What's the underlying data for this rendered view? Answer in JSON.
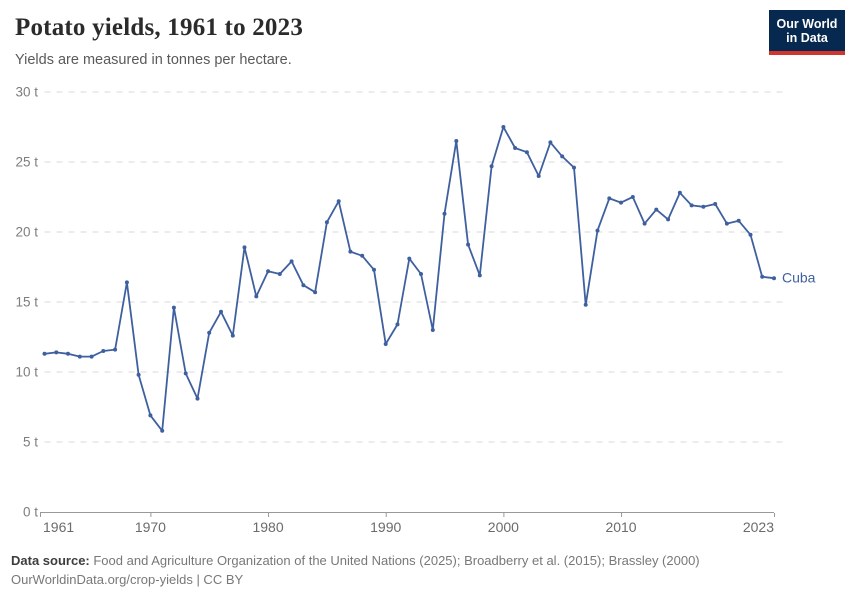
{
  "header": {
    "title": "Potato yields, 1961 to 2023",
    "subtitle": "Yields are measured in tonnes per hectare."
  },
  "logo": {
    "line1": "Our World",
    "line2": "in Data",
    "bg_color": "#07294f",
    "accent_color": "#d0362d"
  },
  "chart_data": {
    "type": "line",
    "title": "Potato yields, 1961 to 2023",
    "ylabel": "tonnes per hectare",
    "unit_suffix": " t",
    "x_range": [
      1961,
      2023
    ],
    "ylim": [
      0,
      30
    ],
    "grid": "horizontal-dashed",
    "legend_position": "line-end",
    "y_ticks": [
      {
        "value": 0,
        "label": "0 t"
      },
      {
        "value": 5,
        "label": "5 t"
      },
      {
        "value": 10,
        "label": "10 t"
      },
      {
        "value": 15,
        "label": "15 t"
      },
      {
        "value": 20,
        "label": "20 t"
      },
      {
        "value": 25,
        "label": "25 t"
      },
      {
        "value": 30,
        "label": "30 t"
      }
    ],
    "x_ticks": [
      {
        "value": 1961,
        "label": "1961"
      },
      {
        "value": 1970,
        "label": "1970"
      },
      {
        "value": 1980,
        "label": "1980"
      },
      {
        "value": 1990,
        "label": "1990"
      },
      {
        "value": 2000,
        "label": "2000"
      },
      {
        "value": 2010,
        "label": "2010"
      },
      {
        "value": 2023,
        "label": "2023"
      }
    ],
    "series": [
      {
        "name": "Cuba",
        "color": "#3f609f",
        "x": [
          1961,
          1962,
          1963,
          1964,
          1965,
          1966,
          1967,
          1968,
          1969,
          1970,
          1971,
          1972,
          1973,
          1974,
          1975,
          1976,
          1977,
          1978,
          1979,
          1980,
          1981,
          1982,
          1983,
          1984,
          1985,
          1986,
          1987,
          1988,
          1989,
          1990,
          1991,
          1992,
          1993,
          1994,
          1995,
          1996,
          1997,
          1998,
          1999,
          2000,
          2001,
          2002,
          2003,
          2004,
          2005,
          2006,
          2007,
          2008,
          2009,
          2010,
          2011,
          2012,
          2013,
          2014,
          2015,
          2016,
          2017,
          2018,
          2019,
          2020,
          2021,
          2022,
          2023
        ],
        "values": [
          11.3,
          11.4,
          11.3,
          11.1,
          11.1,
          11.5,
          11.6,
          16.4,
          9.8,
          6.9,
          5.8,
          14.6,
          9.9,
          8.1,
          12.8,
          14.3,
          12.6,
          18.9,
          15.4,
          17.2,
          17.0,
          17.9,
          16.2,
          15.7,
          20.7,
          22.2,
          18.6,
          18.3,
          17.3,
          12.0,
          13.4,
          18.1,
          17.0,
          13.0,
          21.3,
          26.5,
          19.1,
          16.9,
          24.7,
          27.5,
          26.0,
          25.7,
          24.0,
          26.4,
          25.4,
          24.6,
          14.8,
          20.1,
          22.4,
          22.1,
          22.5,
          20.6,
          21.6,
          20.9,
          22.8,
          21.9,
          21.8,
          22.0,
          20.6,
          20.8,
          19.8,
          16.8,
          16.7
        ]
      }
    ]
  },
  "footer": {
    "source_label": "Data source:",
    "source_text": " Food and Agriculture Organization of the United Nations (2025); Broadberry et al. (2015); Brassley (2000)",
    "license_text": "OurWorldinData.org/crop-yields | CC BY"
  }
}
